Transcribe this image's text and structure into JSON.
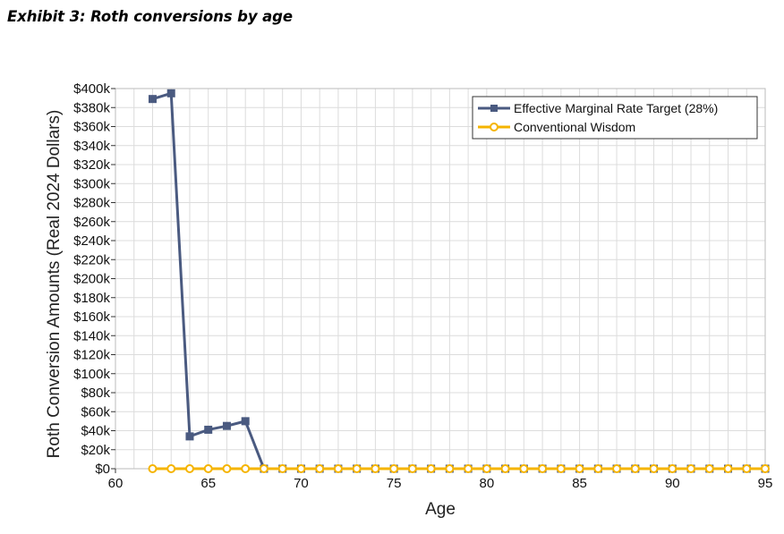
{
  "page": {
    "title": "Exhibit 3: Roth conversions by age"
  },
  "colors": {
    "series_1": "#4a5a80",
    "series_2": "#f5b400",
    "grid": "#dcdcdc",
    "frame": "#bbbbbb"
  },
  "chart_data": {
    "type": "line",
    "xlabel": "Age",
    "ylabel": "Roth Conversion Amounts (Real 2024 Dollars)",
    "xlim": [
      60,
      95
    ],
    "ylim": [
      0,
      400000
    ],
    "x_ticks": [
      60,
      65,
      70,
      75,
      80,
      85,
      90,
      95
    ],
    "x_tick_labels": [
      "60",
      "65",
      "70",
      "75",
      "80",
      "85",
      "90",
      "95"
    ],
    "y_ticks": [
      0,
      20000,
      40000,
      60000,
      80000,
      100000,
      120000,
      140000,
      160000,
      180000,
      200000,
      220000,
      240000,
      260000,
      280000,
      300000,
      320000,
      340000,
      360000,
      380000,
      400000
    ],
    "y_tick_labels": [
      "$0",
      "$20k",
      "$40k",
      "$60k",
      "$80k",
      "$100k",
      "$120k",
      "$140k",
      "$160k",
      "$180k",
      "$200k",
      "$220k",
      "$240k",
      "$260k",
      "$280k",
      "$300k",
      "$320k",
      "$340k",
      "$360k",
      "$380k",
      "$400k"
    ],
    "grid": true,
    "legend_position": "top-right",
    "x": [
      62,
      63,
      64,
      65,
      66,
      67,
      68,
      69,
      70,
      71,
      72,
      73,
      74,
      75,
      76,
      77,
      78,
      79,
      80,
      81,
      82,
      83,
      84,
      85,
      86,
      87,
      88,
      89,
      90,
      91,
      92,
      93,
      94,
      95
    ],
    "series": [
      {
        "name": "Effective Marginal Rate Target (28%)",
        "marker": "square",
        "values": [
          389000,
          395000,
          34000,
          41000,
          45000,
          50000,
          0,
          0,
          0,
          0,
          0,
          0,
          0,
          0,
          0,
          0,
          0,
          0,
          0,
          0,
          0,
          0,
          0,
          0,
          0,
          0,
          0,
          0,
          0,
          0,
          0,
          0,
          0,
          0
        ]
      },
      {
        "name": "Conventional Wisdom",
        "marker": "circle",
        "values": [
          0,
          0,
          0,
          0,
          0,
          0,
          0,
          0,
          0,
          0,
          0,
          0,
          0,
          0,
          0,
          0,
          0,
          0,
          0,
          0,
          0,
          0,
          0,
          0,
          0,
          0,
          0,
          0,
          0,
          0,
          0,
          0,
          0,
          0
        ]
      }
    ]
  }
}
